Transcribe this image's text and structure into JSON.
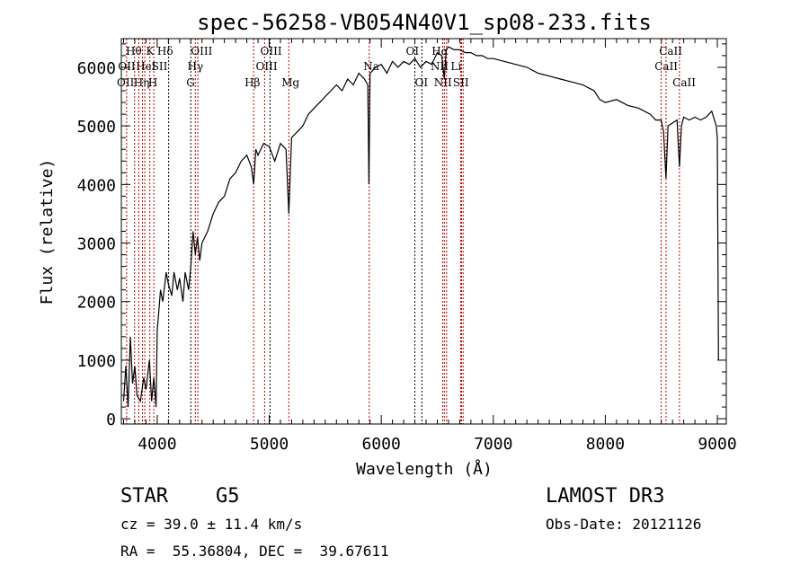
{
  "chart_data": {
    "type": "line",
    "title": "spec-56258-VB054N40V1_sp08-233.fits",
    "xlabel": "Wavelength (Å)",
    "ylabel": "Flux (relative)",
    "xlim": [
      3680,
      9080
    ],
    "ylim": [
      -90,
      6490
    ],
    "xticks": [
      4000,
      5000,
      6000,
      7000,
      8000,
      9000
    ],
    "yticks": [
      0,
      1000,
      2000,
      3000,
      4000,
      5000,
      6000
    ],
    "series": [
      {
        "name": "spectrum",
        "x": [
          3700,
          3720,
          3740,
          3760,
          3780,
          3800,
          3820,
          3850,
          3880,
          3900,
          3930,
          3950,
          3970,
          3990,
          4000,
          4030,
          4050,
          4080,
          4100,
          4130,
          4150,
          4180,
          4200,
          4230,
          4250,
          4280,
          4300,
          4320,
          4340,
          4360,
          4380,
          4400,
          4450,
          4500,
          4550,
          4600,
          4650,
          4700,
          4750,
          4800,
          4840,
          4861,
          4880,
          4900,
          4950,
          5000,
          5050,
          5100,
          5150,
          5175,
          5190,
          5200,
          5250,
          5300,
          5350,
          5400,
          5450,
          5500,
          5550,
          5600,
          5650,
          5700,
          5750,
          5800,
          5850,
          5880,
          5890,
          5900,
          5950,
          6000,
          6050,
          6100,
          6150,
          6200,
          6250,
          6300,
          6350,
          6400,
          6450,
          6500,
          6540,
          6563,
          6580,
          6600,
          6650,
          6700,
          6750,
          6800,
          6850,
          6900,
          6950,
          7000,
          7100,
          7200,
          7300,
          7400,
          7500,
          7600,
          7700,
          7800,
          7850,
          7900,
          7950,
          8000,
          8100,
          8200,
          8300,
          8400,
          8450,
          8498,
          8520,
          8542,
          8560,
          8600,
          8640,
          8662,
          8680,
          8700,
          8750,
          8800,
          8850,
          8900,
          8950,
          8990,
          9000,
          9010
        ],
        "y": [
          300,
          900,
          200,
          1400,
          600,
          900,
          400,
          300,
          700,
          500,
          1000,
          300,
          700,
          200,
          1500,
          2200,
          2000,
          2500,
          2300,
          2100,
          2500,
          2200,
          2400,
          2000,
          2500,
          2200,
          2600,
          3200,
          2800,
          3100,
          2700,
          3000,
          3200,
          3500,
          3700,
          3800,
          4100,
          4200,
          4400,
          4500,
          4300,
          4000,
          4600,
          4500,
          4700,
          4650,
          4400,
          4700,
          4600,
          3500,
          4300,
          4800,
          4900,
          5000,
          5200,
          5300,
          5400,
          5500,
          5600,
          5700,
          5600,
          5800,
          5700,
          5900,
          5800,
          5700,
          4000,
          5900,
          6000,
          6050,
          5900,
          6100,
          6000,
          6100,
          6050,
          6150,
          6000,
          6100,
          6050,
          6250,
          6200,
          5800,
          6300,
          6350,
          6300,
          6300,
          6250,
          6250,
          6200,
          6200,
          6150,
          6150,
          6100,
          6050,
          6000,
          5900,
          5850,
          5800,
          5750,
          5700,
          5650,
          5600,
          5450,
          5400,
          5450,
          5350,
          5300,
          5200,
          5100,
          5100,
          4900,
          4100,
          5000,
          5050,
          5100,
          4300,
          5000,
          5150,
          5100,
          5150,
          5100,
          5150,
          5250,
          5000,
          4800,
          1000
        ]
      }
    ],
    "lines": [
      {
        "w": 3727,
        "c": "#c00000"
      },
      {
        "w": 3798,
        "c": "#c00000"
      },
      {
        "w": 3835,
        "c": "#c00000"
      },
      {
        "w": 3869,
        "c": "#c00000"
      },
      {
        "w": 3889,
        "c": "#c00000"
      },
      {
        "w": 3934,
        "c": "#c00000"
      },
      {
        "w": 3970,
        "c": "#c00000"
      },
      {
        "w": 4102,
        "c": "#000000"
      },
      {
        "w": 4300,
        "c": "#000000"
      },
      {
        "w": 4340,
        "c": "#c00000"
      },
      {
        "w": 4363,
        "c": "#c00000"
      },
      {
        "w": 4861,
        "c": "#c00000"
      },
      {
        "w": 4959,
        "c": "#c00000"
      },
      {
        "w": 5007,
        "c": "#000000"
      },
      {
        "w": 5175,
        "c": "#c00000"
      },
      {
        "w": 5893,
        "c": "#c00000"
      },
      {
        "w": 6300,
        "c": "#000000"
      },
      {
        "w": 6363,
        "c": "#000000"
      },
      {
        "w": 6548,
        "c": "#c00000"
      },
      {
        "w": 6563,
        "c": "#c00000"
      },
      {
        "w": 6583,
        "c": "#c00000"
      },
      {
        "w": 6708,
        "c": "#c00000"
      },
      {
        "w": 6717,
        "c": "#c00000"
      },
      {
        "w": 6731,
        "c": "#c00000"
      },
      {
        "w": 8498,
        "c": "#c00000"
      },
      {
        "w": 8542,
        "c": "#c00000"
      },
      {
        "w": 8662,
        "c": "#c00000"
      }
    ],
    "line_labels": [
      {
        "t": "Hθ",
        "w": 3720,
        "row": 0
      },
      {
        "t": "K",
        "w": 3900,
        "row": 0
      },
      {
        "t": "Hδ",
        "w": 4000,
        "row": 0
      },
      {
        "t": "OIII",
        "w": 4300,
        "row": 0
      },
      {
        "t": "OIII",
        "w": 4920,
        "row": 0
      },
      {
        "t": "OI",
        "w": 6220,
        "row": 0
      },
      {
        "t": "Hα",
        "w": 6450,
        "row": 0
      },
      {
        "t": "CaII",
        "w": 8480,
        "row": 0
      },
      {
        "t": "OII",
        "w": 3650,
        "row": 1
      },
      {
        "t": "HeI",
        "w": 3810,
        "row": 1
      },
      {
        "t": "SII",
        "w": 3950,
        "row": 1
      },
      {
        "t": "Hγ",
        "w": 4270,
        "row": 1
      },
      {
        "t": "OIII",
        "w": 4880,
        "row": 1
      },
      {
        "t": "Na",
        "w": 5840,
        "row": 1
      },
      {
        "t": "NII",
        "w": 6440,
        "row": 1
      },
      {
        "t": "Li",
        "w": 6620,
        "row": 1
      },
      {
        "t": "CaII",
        "w": 8440,
        "row": 1
      },
      {
        "t": "OII",
        "w": 3640,
        "row": 2
      },
      {
        "t": "Hη",
        "w": 3790,
        "row": 2
      },
      {
        "t": "H",
        "w": 3920,
        "row": 2
      },
      {
        "t": "G",
        "w": 4260,
        "row": 2
      },
      {
        "t": "Hβ",
        "w": 4780,
        "row": 2
      },
      {
        "t": "Mg",
        "w": 5110,
        "row": 2
      },
      {
        "t": "OI",
        "w": 6300,
        "row": 2
      },
      {
        "t": "NII",
        "w": 6470,
        "row": 2
      },
      {
        "t": "SII",
        "w": 6640,
        "row": 2
      },
      {
        "t": "CaII",
        "w": 8600,
        "row": 2
      }
    ]
  },
  "info": {
    "object": "STAR    G5",
    "cz": "cz = 39.0 ± 11.4 km/s",
    "coords": "RA =  55.36804, DEC =  39.67611",
    "survey": "LAMOST DR3",
    "obs_date": "Obs-Date: 20121126"
  }
}
